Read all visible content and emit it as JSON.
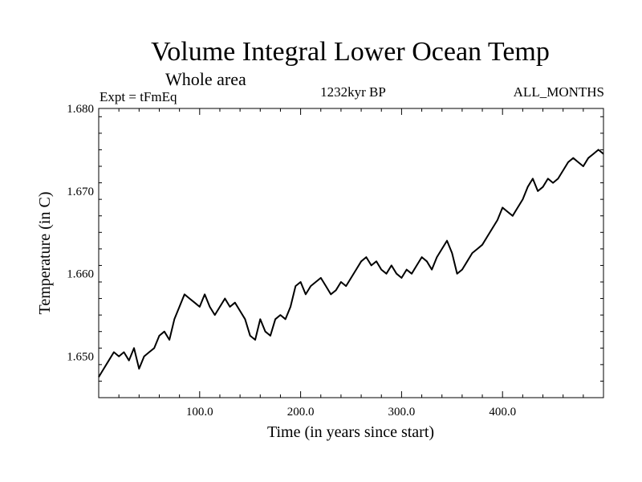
{
  "chart_data": {
    "type": "line",
    "title": "Volume Integral Lower Ocean Temp",
    "subtitle": "Whole area",
    "experiment": "Expt = tFmEq",
    "period": "1232kyr BP",
    "months": "ALL_MONTHS",
    "xlabel": "Time (in years since start)",
    "ylabel": "Temperature (in C)",
    "xlim": [
      0,
      500
    ],
    "ylim": [
      1.645,
      1.68
    ],
    "x_ticks": [
      100,
      200,
      300,
      400
    ],
    "x_tick_labels": [
      "100.0",
      "200.0",
      "300.0",
      "400.0"
    ],
    "y_ticks": [
      1.65,
      1.66,
      1.67,
      1.68
    ],
    "y_tick_labels": [
      "1.650",
      "1.660",
      "1.670",
      "1.680"
    ],
    "grid": false,
    "series": [
      {
        "name": "Volume integral lower ocean temperature",
        "color": "#000000",
        "x": [
          0,
          5,
          10,
          15,
          20,
          25,
          30,
          35,
          40,
          45,
          50,
          55,
          60,
          65,
          70,
          75,
          80,
          85,
          90,
          95,
          100,
          105,
          110,
          115,
          120,
          125,
          130,
          135,
          140,
          145,
          150,
          155,
          160,
          165,
          170,
          175,
          180,
          185,
          190,
          195,
          200,
          205,
          210,
          215,
          220,
          225,
          230,
          235,
          240,
          245,
          250,
          255,
          260,
          265,
          270,
          275,
          280,
          285,
          290,
          295,
          300,
          305,
          310,
          315,
          320,
          325,
          330,
          335,
          340,
          345,
          350,
          355,
          360,
          365,
          370,
          375,
          380,
          385,
          390,
          395,
          400,
          405,
          410,
          415,
          420,
          425,
          430,
          435,
          440,
          445,
          450,
          455,
          460,
          465,
          470,
          475,
          480,
          485,
          490,
          495,
          500
        ],
        "values": [
          1.6475,
          1.6485,
          1.6495,
          1.6505,
          1.65,
          1.6505,
          1.6495,
          1.651,
          1.6485,
          1.65,
          1.6505,
          1.651,
          1.6525,
          1.653,
          1.652,
          1.6545,
          1.656,
          1.6575,
          1.657,
          1.6565,
          1.656,
          1.6575,
          1.656,
          1.655,
          1.656,
          1.657,
          1.656,
          1.6565,
          1.6555,
          1.6545,
          1.6525,
          1.652,
          1.6545,
          1.653,
          1.6525,
          1.6545,
          1.655,
          1.6545,
          1.656,
          1.6585,
          1.659,
          1.6575,
          1.6585,
          1.659,
          1.6595,
          1.6585,
          1.6575,
          1.658,
          1.659,
          1.6585,
          1.6595,
          1.6605,
          1.6615,
          1.662,
          1.661,
          1.6615,
          1.6605,
          1.66,
          1.661,
          1.66,
          1.6595,
          1.6605,
          1.66,
          1.661,
          1.662,
          1.6615,
          1.6605,
          1.662,
          1.663,
          1.664,
          1.6625,
          1.66,
          1.6605,
          1.6615,
          1.6625,
          1.663,
          1.6635,
          1.6645,
          1.6655,
          1.6665,
          1.668,
          1.6675,
          1.667,
          1.668,
          1.669,
          1.6705,
          1.6715,
          1.67,
          1.6705,
          1.6715,
          1.671,
          1.6715,
          1.6725,
          1.6735,
          1.674,
          1.6735,
          1.673,
          1.674,
          1.6745,
          1.675,
          1.6745
        ]
      }
    ]
  }
}
